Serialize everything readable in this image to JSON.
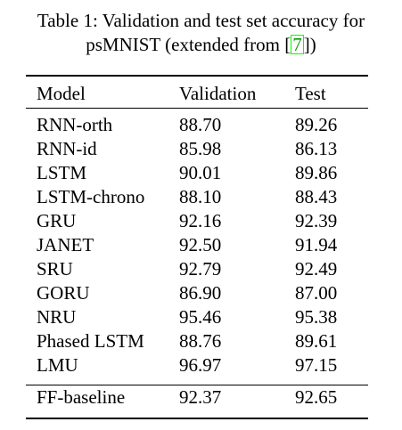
{
  "caption": {
    "line1": "Table 1: Validation and test set accuracy for",
    "line2_prefix": "psMNIST (extended from [",
    "cite": "7",
    "line2_suffix": "])"
  },
  "table": {
    "headers": [
      "Model",
      "Validation",
      "Test"
    ],
    "rows": [
      {
        "model": "RNN-orth",
        "validation": "88.70",
        "test": "89.26",
        "bold": false
      },
      {
        "model": "RNN-id",
        "validation": "85.98",
        "test": "86.13",
        "bold": false
      },
      {
        "model": "LSTM",
        "validation": "90.01",
        "test": "89.86",
        "bold": false
      },
      {
        "model": "LSTM-chrono",
        "validation": "88.10",
        "test": "88.43",
        "bold": false
      },
      {
        "model": "GRU",
        "validation": "92.16",
        "test": "92.39",
        "bold": false
      },
      {
        "model": "JANET",
        "validation": "92.50",
        "test": "91.94",
        "bold": false
      },
      {
        "model": "SRU",
        "validation": "92.79",
        "test": "92.49",
        "bold": false
      },
      {
        "model": "GORU",
        "validation": "86.90",
        "test": "87.00",
        "bold": false
      },
      {
        "model": "NRU",
        "validation": "95.46",
        "test": "95.38",
        "bold": false
      },
      {
        "model": "Phased LSTM",
        "validation": "88.76",
        "test": "89.61",
        "bold": false
      },
      {
        "model": "LMU",
        "validation": "96.97",
        "test": "97.15",
        "bold": true
      }
    ],
    "baseline": {
      "model": "FF-baseline",
      "validation": "92.37",
      "test": "92.65"
    }
  },
  "colors": {
    "cite_text": "#00a000",
    "cite_box": "#00ff00"
  }
}
